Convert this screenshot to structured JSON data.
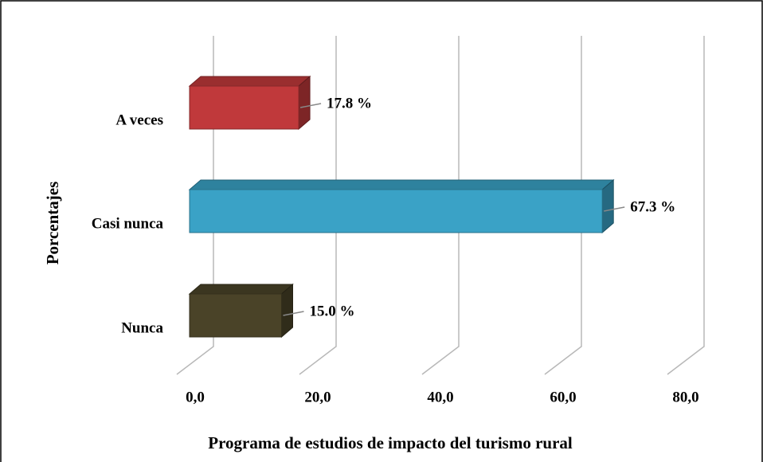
{
  "chart_data": {
    "type": "bar3d",
    "orientation": "horizontal",
    "xlabel": "Programa de estudios de impacto del turismo rural",
    "ylabel": "Porcentajes",
    "categories": [
      "A veces",
      "Casi nunca",
      "Nunca"
    ],
    "values": [
      17.8,
      67.3,
      15.0
    ],
    "value_labels": [
      "17.8 %",
      "67.3 %",
      "15.0 %"
    ],
    "colors": [
      "#c0393b",
      "#3aa2c6",
      "#4a4328"
    ],
    "xlim": [
      0,
      80
    ],
    "xticks": [
      {
        "value": 0,
        "label": "0,0"
      },
      {
        "value": 20,
        "label": "20,0"
      },
      {
        "value": 40,
        "label": "40,0"
      },
      {
        "value": 60,
        "label": "60,0"
      },
      {
        "value": 80,
        "label": "80,0"
      }
    ],
    "grid": true
  }
}
